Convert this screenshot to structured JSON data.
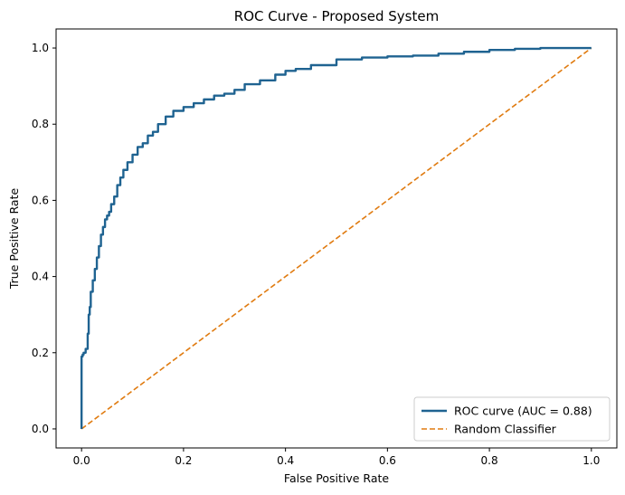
{
  "chart_data": {
    "type": "line",
    "title": "ROC Curve - Proposed System",
    "xlabel": "False Positive Rate",
    "ylabel": "True Positive Rate",
    "xlim": [
      -0.05,
      1.05
    ],
    "ylim": [
      -0.05,
      1.05
    ],
    "xticks": [
      0.0,
      0.2,
      0.4,
      0.6,
      0.8,
      1.0
    ],
    "xtick_labels": [
      "0.0",
      "0.2",
      "0.4",
      "0.6",
      "0.8",
      "1.0"
    ],
    "yticks": [
      0.0,
      0.2,
      0.4,
      0.6,
      0.8,
      1.0
    ],
    "ytick_labels": [
      "0.0",
      "0.2",
      "0.4",
      "0.6",
      "0.8",
      "1.0"
    ],
    "grid": false,
    "legend_position": "lower-right",
    "series": [
      {
        "name": "ROC curve (AUC = 0.88)",
        "color": "#1f6391",
        "style": "solid",
        "x": [
          0.0,
          0.0,
          0.002,
          0.004,
          0.008,
          0.012,
          0.014,
          0.016,
          0.018,
          0.022,
          0.026,
          0.03,
          0.034,
          0.038,
          0.042,
          0.046,
          0.05,
          0.054,
          0.058,
          0.064,
          0.07,
          0.076,
          0.082,
          0.09,
          0.1,
          0.11,
          0.12,
          0.13,
          0.14,
          0.15,
          0.165,
          0.18,
          0.2,
          0.22,
          0.24,
          0.26,
          0.28,
          0.3,
          0.32,
          0.35,
          0.38,
          0.4,
          0.42,
          0.45,
          0.5,
          0.55,
          0.6,
          0.65,
          0.7,
          0.75,
          0.8,
          0.85,
          0.9,
          0.95,
          1.0
        ],
        "y": [
          0.0,
          0.08,
          0.19,
          0.195,
          0.2,
          0.21,
          0.25,
          0.3,
          0.32,
          0.36,
          0.39,
          0.42,
          0.45,
          0.48,
          0.51,
          0.53,
          0.55,
          0.56,
          0.57,
          0.59,
          0.61,
          0.64,
          0.66,
          0.68,
          0.7,
          0.72,
          0.74,
          0.75,
          0.77,
          0.78,
          0.8,
          0.82,
          0.835,
          0.845,
          0.855,
          0.865,
          0.875,
          0.88,
          0.89,
          0.905,
          0.915,
          0.93,
          0.94,
          0.945,
          0.955,
          0.97,
          0.975,
          0.978,
          0.98,
          0.985,
          0.99,
          0.995,
          0.998,
          1.0,
          1.0
        ]
      },
      {
        "name": "Random Classifier",
        "color": "#e07b10",
        "style": "dashed",
        "x": [
          0.0,
          1.0
        ],
        "y": [
          0.0,
          1.0
        ]
      }
    ]
  }
}
